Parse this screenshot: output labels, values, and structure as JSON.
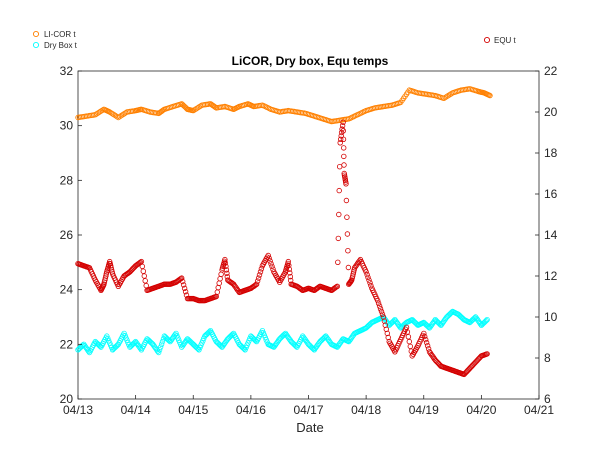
{
  "chart_data": {
    "type": "scatter",
    "title": "LiCOR, Dry box, Equ temps",
    "xlabel": "Date",
    "ylabel_left": "",
    "ylabel_right": "",
    "x_ticks": [
      "04/13",
      "04/14",
      "04/15",
      "04/16",
      "04/17",
      "04/18",
      "04/19",
      "04/20",
      "04/21"
    ],
    "xlim": [
      0,
      8
    ],
    "ylim_left": [
      20,
      32
    ],
    "ylim_right": [
      6,
      22
    ],
    "y_ticks_left": [
      20,
      22,
      24,
      26,
      28,
      30,
      32
    ],
    "y_ticks_right": [
      6,
      8,
      10,
      12,
      14,
      16,
      18,
      20,
      22
    ],
    "grid": false,
    "legend_left": "top-left outside",
    "legend_right": "top-right outside",
    "colors": {
      "licor": "#ff8000",
      "drybox": "#00ffff",
      "equ": "#d40000",
      "axis": "#262626"
    },
    "series": [
      {
        "name": "LI-COR t",
        "axis": "left",
        "x": [
          0,
          0.15,
          0.3,
          0.45,
          0.55,
          0.7,
          0.85,
          1.0,
          1.1,
          1.25,
          1.4,
          1.5,
          1.65,
          1.8,
          1.9,
          2.0,
          2.15,
          2.3,
          2.4,
          2.55,
          2.7,
          2.8,
          2.95,
          3.05,
          3.2,
          3.35,
          3.5,
          3.65,
          3.8,
          3.95,
          4.1,
          4.25,
          4.4,
          4.55,
          4.7,
          4.85,
          5.0,
          5.15,
          5.3,
          5.45,
          5.6,
          5.75,
          5.9,
          6.05,
          6.2,
          6.35,
          6.5,
          6.65,
          6.8,
          6.95,
          7.05,
          7.15
        ],
        "y": [
          30.3,
          30.35,
          30.4,
          30.6,
          30.5,
          30.3,
          30.5,
          30.55,
          30.6,
          30.5,
          30.45,
          30.6,
          30.7,
          30.8,
          30.6,
          30.55,
          30.75,
          30.8,
          30.65,
          30.7,
          30.6,
          30.7,
          30.8,
          30.7,
          30.75,
          30.6,
          30.5,
          30.55,
          30.5,
          30.45,
          30.35,
          30.25,
          30.15,
          30.2,
          30.25,
          30.4,
          30.55,
          30.65,
          30.7,
          30.75,
          30.85,
          31.3,
          31.2,
          31.15,
          31.1,
          31.0,
          31.2,
          31.3,
          31.35,
          31.25,
          31.2,
          31.1
        ]
      },
      {
        "name": "Dry Box t",
        "axis": "left",
        "x": [
          0,
          0.1,
          0.2,
          0.3,
          0.4,
          0.5,
          0.6,
          0.7,
          0.8,
          0.9,
          1.0,
          1.1,
          1.2,
          1.3,
          1.4,
          1.5,
          1.6,
          1.7,
          1.8,
          1.9,
          2.0,
          2.1,
          2.2,
          2.3,
          2.4,
          2.5,
          2.6,
          2.7,
          2.8,
          2.9,
          3.0,
          3.1,
          3.2,
          3.3,
          3.4,
          3.5,
          3.6,
          3.7,
          3.8,
          3.9,
          4.0,
          4.1,
          4.2,
          4.3,
          4.4,
          4.5,
          4.6,
          4.7,
          4.8,
          4.9,
          5.0,
          5.1,
          5.2,
          5.3,
          5.4,
          5.5,
          5.6,
          5.7,
          5.8,
          5.9,
          6.0,
          6.1,
          6.2,
          6.3,
          6.4,
          6.5,
          6.6,
          6.7,
          6.8,
          6.9,
          7.0,
          7.1
        ],
        "y": [
          21.8,
          22.0,
          21.7,
          22.1,
          21.9,
          22.3,
          21.8,
          22.0,
          22.4,
          21.9,
          22.1,
          21.8,
          22.2,
          22.0,
          21.7,
          22.3,
          22.1,
          22.4,
          21.9,
          22.2,
          22.0,
          21.8,
          22.3,
          22.5,
          22.1,
          21.9,
          22.2,
          22.4,
          22.0,
          21.8,
          22.3,
          22.1,
          22.5,
          22.0,
          21.9,
          22.2,
          22.4,
          22.1,
          21.9,
          22.3,
          22.0,
          21.8,
          22.1,
          22.3,
          22.0,
          21.9,
          22.2,
          22.1,
          22.4,
          22.5,
          22.6,
          22.8,
          22.9,
          23.0,
          22.7,
          22.9,
          22.6,
          22.8,
          22.9,
          22.7,
          22.8,
          22.6,
          22.9,
          22.7,
          23.0,
          23.2,
          23.1,
          22.9,
          22.8,
          23.0,
          22.7,
          22.9
        ]
      },
      {
        "name": "EQU t",
        "axis": "right",
        "x": [
          0,
          0.1,
          0.2,
          0.3,
          0.4,
          0.45,
          0.5,
          0.55,
          0.6,
          0.7,
          0.8,
          0.9,
          1.0,
          1.1,
          1.2,
          1.3,
          1.4,
          1.5,
          1.6,
          1.7,
          1.8,
          1.9,
          2.0,
          2.1,
          2.2,
          2.3,
          2.4,
          2.5,
          2.55,
          2.6,
          2.7,
          2.8,
          2.9,
          3.0,
          3.1,
          3.2,
          3.3,
          3.4,
          3.5,
          3.6,
          3.65,
          3.7,
          3.8,
          3.9,
          4.0,
          4.1,
          4.2,
          4.3,
          4.4,
          4.5,
          4.55,
          4.6,
          4.62,
          4.65,
          4.7,
          4.75,
          4.8,
          4.9,
          5.0,
          5.1,
          5.2,
          5.3,
          5.4,
          5.5,
          5.6,
          5.7,
          5.8,
          5.9,
          6.0,
          6.1,
          6.2,
          6.3,
          6.4,
          6.5,
          6.6,
          6.7,
          6.8,
          6.9,
          7.0,
          7.1
        ],
        "y": [
          12.6,
          12.5,
          12.4,
          11.8,
          11.3,
          11.6,
          12.2,
          12.7,
          12.1,
          11.5,
          12.0,
          12.2,
          12.5,
          12.7,
          11.3,
          11.4,
          11.5,
          11.6,
          11.6,
          11.7,
          11.9,
          10.9,
          10.9,
          10.8,
          10.8,
          10.9,
          11.0,
          12.3,
          12.8,
          11.8,
          11.6,
          11.2,
          11.3,
          11.4,
          11.6,
          12.5,
          13.0,
          12.2,
          11.7,
          12.2,
          12.7,
          11.6,
          11.5,
          11.3,
          11.4,
          11.3,
          11.5,
          11.4,
          11.3,
          11.5,
          18.5,
          19.5,
          17.0,
          16.5,
          11.6,
          11.8,
          12.4,
          12.8,
          12.2,
          11.4,
          10.8,
          10.0,
          8.8,
          8.3,
          8.9,
          9.5,
          8.1,
          8.6,
          9.2,
          8.3,
          7.9,
          7.6,
          7.5,
          7.4,
          7.3,
          7.2,
          7.5,
          7.8,
          8.1,
          8.2
        ]
      }
    ]
  }
}
